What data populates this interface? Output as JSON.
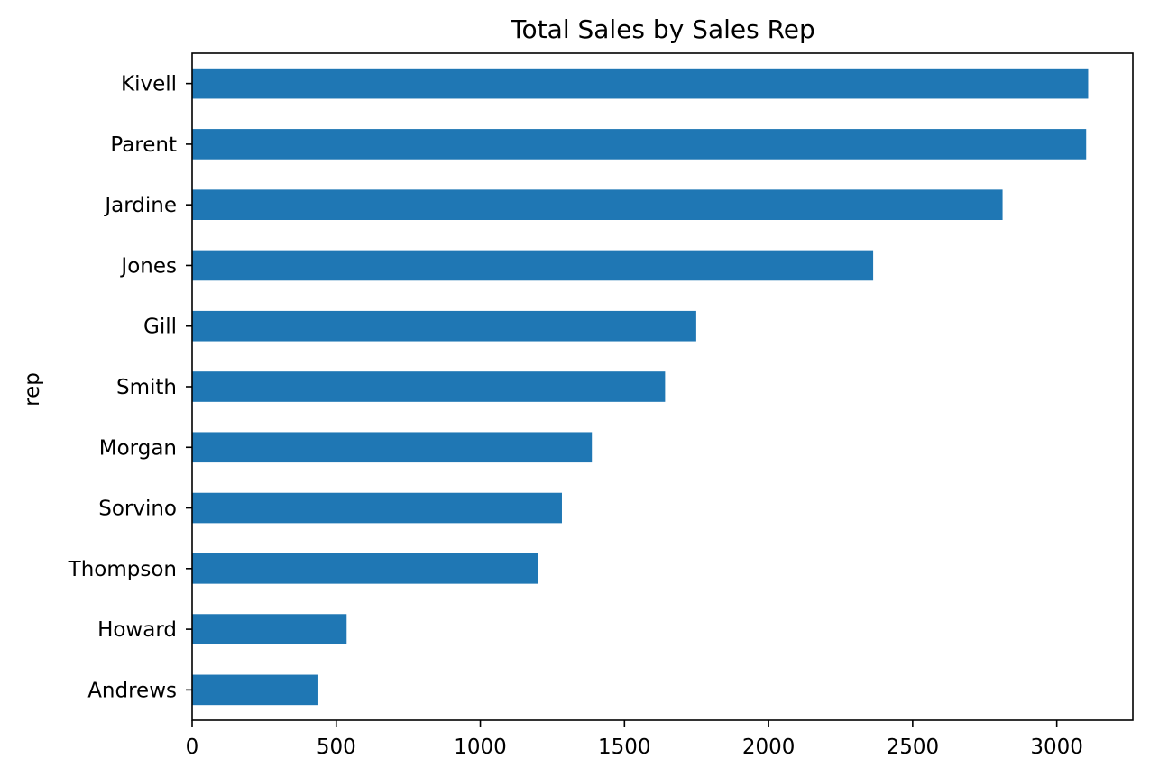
{
  "chart_data": {
    "type": "bar",
    "orientation": "horizontal",
    "title": "Total Sales by Sales Rep",
    "xlabel": "",
    "ylabel": "rep",
    "categories": [
      "Kivell",
      "Parent",
      "Jardine",
      "Jones",
      "Gill",
      "Smith",
      "Morgan",
      "Sorvino",
      "Thompson",
      "Howard",
      "Andrews"
    ],
    "values": [
      3109,
      3102,
      2812,
      2363,
      1749,
      1641,
      1387,
      1283,
      1201,
      536,
      438
    ],
    "xlim": [
      0,
      3264
    ],
    "xticks": [
      0,
      500,
      1000,
      1500,
      2000,
      2500,
      3000
    ],
    "bar_color": "#1f77b4",
    "grid": false,
    "legend": "none"
  }
}
